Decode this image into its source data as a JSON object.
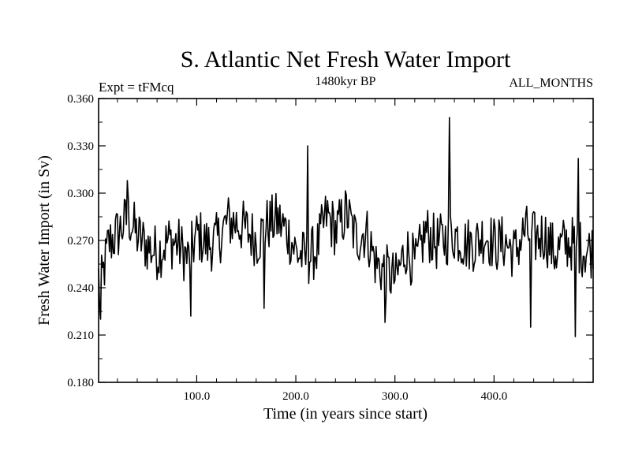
{
  "chart_data": {
    "type": "line",
    "title": "S. Atlantic Net Fresh Water Import",
    "subtitle_left": "Expt = tFMcq",
    "subtitle_center": "1480kyr BP",
    "subtitle_right": "ALL_MONTHS",
    "xlabel": "Time (in years since start)",
    "ylabel": "Fresh Water Import (in Sv)",
    "xlim": [
      1,
      500
    ],
    "ylim": [
      0.18,
      0.36
    ],
    "x_ticks": [
      100,
      200,
      300,
      400
    ],
    "x_tick_labels": [
      "100.0",
      "200.0",
      "300.0",
      "400.0"
    ],
    "y_ticks": [
      0.18,
      0.21,
      0.24,
      0.27,
      0.3,
      0.33,
      0.36
    ],
    "y_tick_labels": [
      "0.180",
      "0.210",
      "0.240",
      "0.270",
      "0.300",
      "0.330",
      "0.360"
    ],
    "series": [
      {
        "name": "Fresh Water Import",
        "x_start": 1,
        "x_step": 10,
        "values": [
          0.232,
          0.268,
          0.275,
          0.285,
          0.272,
          0.266,
          0.262,
          0.27,
          0.268,
          0.258,
          0.274,
          0.267,
          0.27,
          0.282,
          0.281,
          0.276,
          0.27,
          0.28,
          0.283,
          0.276,
          0.262,
          0.258,
          0.264,
          0.286,
          0.276,
          0.288,
          0.271,
          0.276,
          0.255,
          0.25,
          0.245,
          0.265,
          0.254,
          0.276,
          0.268,
          0.271,
          0.274,
          0.268,
          0.268,
          0.274,
          0.267,
          0.269,
          0.262,
          0.276,
          0.271,
          0.274,
          0.262,
          0.268,
          0.268,
          0.264
        ],
        "extremes": [
          {
            "x": 1,
            "value": 0.252
          },
          {
            "x": 3,
            "value": 0.22
          },
          {
            "x": 30,
            "value": 0.308
          },
          {
            "x": 94,
            "value": 0.222
          },
          {
            "x": 168,
            "value": 0.227
          },
          {
            "x": 212,
            "value": 0.33
          },
          {
            "x": 290,
            "value": 0.218
          },
          {
            "x": 355,
            "value": 0.348
          },
          {
            "x": 437,
            "value": 0.215
          },
          {
            "x": 482,
            "value": 0.209
          },
          {
            "x": 485,
            "value": 0.322
          },
          {
            "x": 500,
            "value": 0.252
          }
        ]
      }
    ]
  }
}
